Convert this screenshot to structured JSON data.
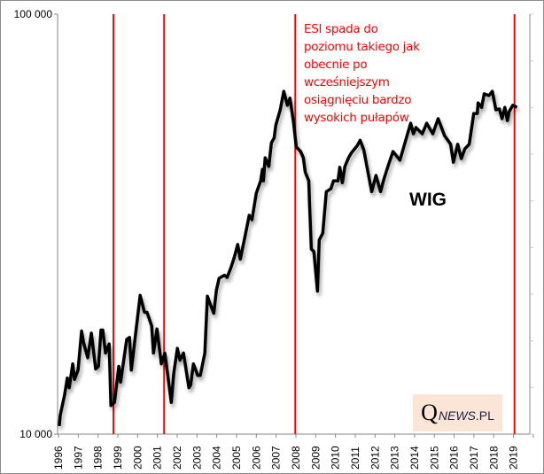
{
  "chart_data": {
    "type": "line",
    "title": "",
    "xlabel": "",
    "ylabel": "",
    "yscale": "log",
    "ylim": [
      10000,
      100000
    ],
    "xlim": [
      1996,
      2020.5
    ],
    "y_tick_labels": [
      "10 000",
      "100 000"
    ],
    "y_ticks": [
      10000,
      100000
    ],
    "x_tick_labels": [
      "1996",
      "1997",
      "1998",
      "1999",
      "2000",
      "2001",
      "2002",
      "2003",
      "2004",
      "2005",
      "2006",
      "2007",
      "2008",
      "2009",
      "2010",
      "2011",
      "2012",
      "2013",
      "2014",
      "2015",
      "2016",
      "2017",
      "2018",
      "2019"
    ],
    "grid": false,
    "series": [
      {
        "name": "WIG",
        "color": "#000000",
        "x": [
          1996.04,
          1996.09,
          1996.31,
          1996.45,
          1996.54,
          1996.72,
          1996.81,
          1996.99,
          1997.17,
          1997.26,
          1997.48,
          1997.66,
          1997.88,
          1998.02,
          1998.15,
          1998.24,
          1998.38,
          1998.56,
          1998.65,
          1998.83,
          1999.05,
          1999.14,
          1999.45,
          1999.59,
          1999.68,
          2000.13,
          2000.35,
          2000.48,
          2000.71,
          2000.8,
          2000.98,
          2001.2,
          2001.38,
          2001.7,
          2001.83,
          2002.01,
          2002.14,
          2002.32,
          2002.59,
          2002.68,
          2002.82,
          2003.04,
          2003.17,
          2003.4,
          2003.53,
          2003.67,
          2003.85,
          2003.98,
          2004.12,
          2004.39,
          2004.52,
          2004.7,
          2004.88,
          2005.06,
          2005.19,
          2005.42,
          2005.64,
          2005.78,
          2006.0,
          2006.22,
          2006.31,
          2006.36,
          2006.45,
          2006.63,
          2006.76,
          2006.9,
          2006.99,
          2007.21,
          2007.39,
          2007.57,
          2007.7,
          2007.88,
          2008.02,
          2008.24,
          2008.38,
          2008.47,
          2008.65,
          2008.69,
          2008.78,
          2008.91,
          2009.09,
          2009.18,
          2009.36,
          2009.54,
          2009.77,
          2009.9,
          2010.13,
          2010.22,
          2010.35,
          2010.48,
          2010.66,
          2010.8,
          2011.11,
          2011.25,
          2011.43,
          2011.7,
          2011.83,
          2012.05,
          2012.28,
          2012.46,
          2012.68,
          2012.91,
          2013.26,
          2013.49,
          2013.8,
          2013.94,
          2014.07,
          2014.39,
          2014.61,
          2014.92,
          2015.19,
          2015.51,
          2015.82,
          2015.96,
          2016.18,
          2016.36,
          2016.54,
          2016.76,
          2016.99,
          2017.17,
          2017.21,
          2017.39,
          2017.52,
          2017.75,
          2017.93,
          2018.11,
          2018.29,
          2018.42,
          2018.56,
          2018.69,
          2018.78,
          2018.96,
          2019.18
        ],
        "y": [
          10450,
          11100,
          12400,
          13600,
          12900,
          14700,
          13500,
          14200,
          17600,
          16600,
          15200,
          17400,
          14300,
          14500,
          17700,
          17700,
          15600,
          16400,
          11700,
          11900,
          14500,
          13300,
          16800,
          17000,
          14200,
          21400,
          19500,
          19500,
          18100,
          15600,
          17800,
          14700,
          15600,
          11900,
          14000,
          16000,
          15000,
          15600,
          12900,
          13100,
          14700,
          13800,
          13800,
          15600,
          21300,
          20400,
          19400,
          22000,
          23500,
          23900,
          23600,
          24800,
          26300,
          28300,
          26100,
          29400,
          33200,
          32400,
          37500,
          40100,
          42700,
          40100,
          45500,
          43400,
          49400,
          50700,
          54500,
          59200,
          65500,
          60700,
          63100,
          55300,
          48300,
          47100,
          45500,
          42100,
          40100,
          35200,
          27600,
          27200,
          21900,
          29000,
          30100,
          37800,
          38400,
          40100,
          40100,
          43200,
          39700,
          43400,
          45500,
          46700,
          48700,
          50100,
          47500,
          40700,
          37800,
          41300,
          37800,
          40700,
          43800,
          47100,
          44900,
          49000,
          55000,
          51900,
          53700,
          51900,
          55000,
          51900,
          56400,
          51400,
          49000,
          44400,
          49000,
          45300,
          47800,
          49000,
          58000,
          58000,
          61500,
          60000,
          64600,
          64000,
          65500,
          59200,
          59500,
          56400,
          60000,
          55800,
          58600,
          60700,
          60000
        ]
      }
    ],
    "vertical_markers": {
      "color": "#ff0000",
      "x": [
        1998.78,
        2001.34,
        2007.97,
        2019.05
      ]
    },
    "series_label": "WIG",
    "annotation": [
      "ESI spada do",
      "poziomu takiego jak",
      "obecnie po",
      "wcześniejszym",
      "osiągnięciu bardzo",
      "wysokich pułapów"
    ],
    "annotation_color": "#ff0000",
    "secondary_axis_ticks": 10
  },
  "logo": {
    "q": "Q",
    "news": "NEWS",
    "pl": ".PL",
    "background": "#fbe5d6"
  }
}
